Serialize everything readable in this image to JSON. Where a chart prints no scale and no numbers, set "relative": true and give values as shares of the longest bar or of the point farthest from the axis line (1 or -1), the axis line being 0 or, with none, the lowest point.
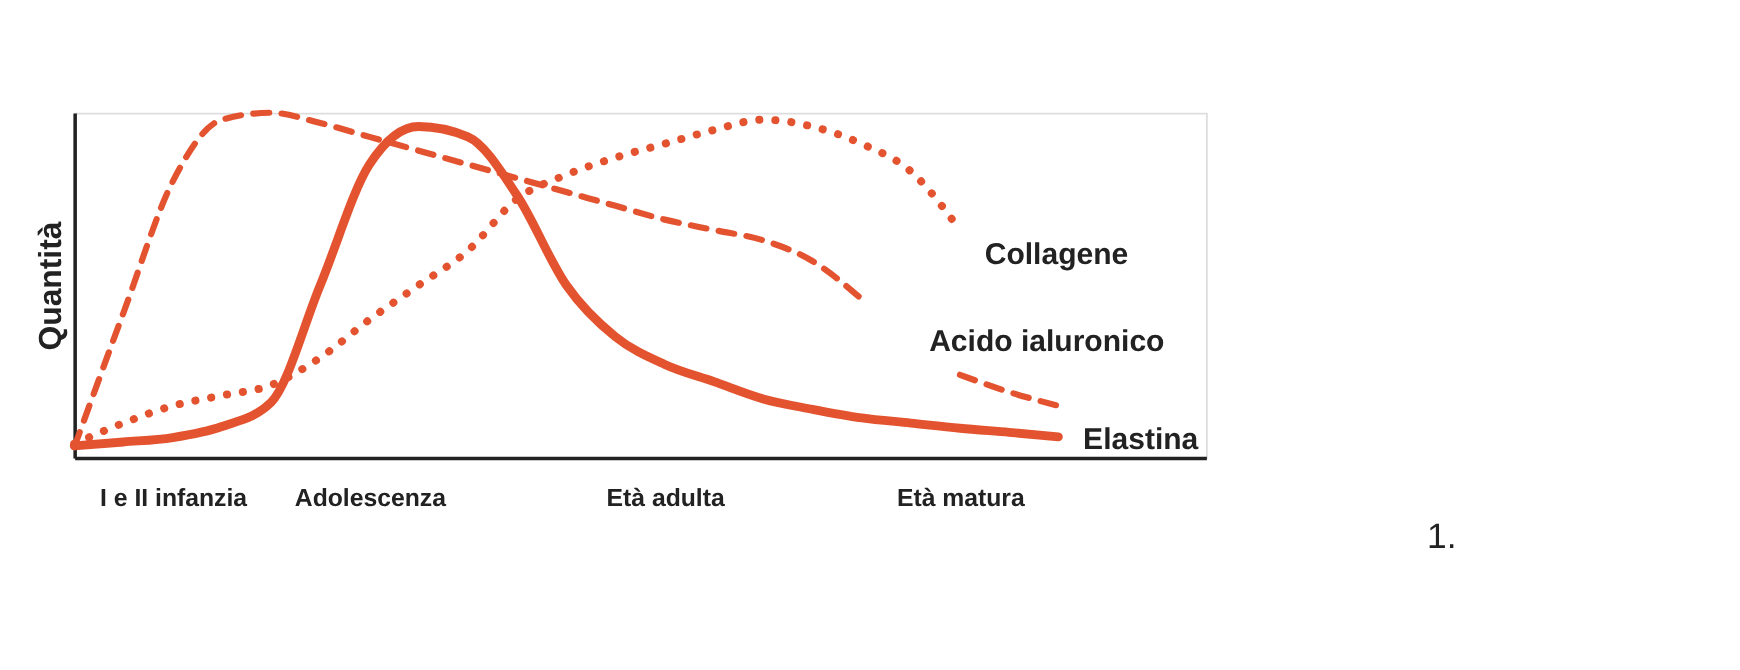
{
  "chart_data": {
    "type": "line",
    "relative": true,
    "ylabel": "Quantità",
    "legend": false,
    "grid": false,
    "categories": [
      null,
      null,
      "I e II infanzia",
      null,
      null,
      null,
      "Adolescenza",
      null,
      null,
      null,
      null,
      null,
      "Età adulta",
      null,
      null,
      null,
      null,
      null,
      "Età matura",
      null,
      null,
      null,
      null,
      null
    ],
    "annotations": [
      "1."
    ],
    "series": [
      {
        "name": "Collagene",
        "color": "#e4532f",
        "line_style": "dotted",
        "values": [
          0.04,
          0.1,
          0.15,
          0.18,
          0.21,
          0.29,
          0.4,
          0.5,
          0.6,
          0.75,
          0.82,
          0.87,
          0.91,
          0.95,
          0.98,
          0.96,
          0.91,
          0.83,
          0.66,
          null,
          null,
          null,
          null,
          null
        ]
      },
      {
        "name": "Acido ialuronico",
        "color": "#e4532f",
        "line_style": "dashed",
        "values": [
          0.03,
          0.42,
          0.8,
          0.98,
          1.0,
          0.97,
          0.93,
          0.89,
          0.85,
          0.81,
          0.77,
          0.73,
          0.69,
          0.66,
          0.63,
          0.57,
          0.46,
          null,
          0.24,
          0.19,
          0.15,
          null,
          null,
          null
        ]
      },
      {
        "name": "Elastina",
        "color": "#e4532f",
        "line_style": "solid",
        "values": [
          0.034,
          0.045,
          0.058,
          0.09,
          0.16,
          0.5,
          0.85,
          0.96,
          0.93,
          0.76,
          0.5,
          0.35,
          0.27,
          0.22,
          0.17,
          0.14,
          0.115,
          0.1,
          0.085,
          0.073,
          0.06,
          null,
          null,
          null
        ]
      }
    ]
  }
}
